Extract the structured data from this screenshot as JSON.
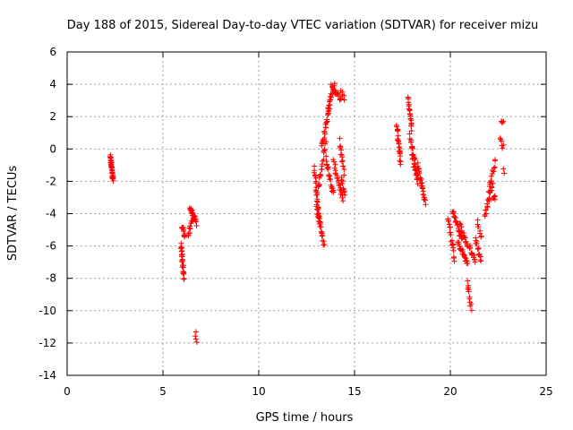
{
  "chart_data": {
    "type": "scatter",
    "title": "Day 188 of 2015, Sidereal Day-to-day VTEC variation (SDTVAR) for receiver mizu",
    "xlabel": "GPS time / hours",
    "ylabel": "SDTVAR / TECUs",
    "xlim": [
      0,
      25
    ],
    "ylim": [
      -14,
      6
    ],
    "xticks": [
      0,
      5,
      10,
      15,
      20,
      25
    ],
    "yticks": [
      -14,
      -12,
      -10,
      -8,
      -6,
      -4,
      -2,
      0,
      2,
      4,
      6
    ],
    "xtick_labels": [
      "0",
      "5",
      "10",
      "15",
      "20",
      "25"
    ],
    "ytick_labels": [
      "-14",
      "-12",
      "-10",
      "-8",
      "-6",
      "-4",
      "-2",
      "0",
      "2",
      "4",
      "6"
    ],
    "grid": true,
    "marker": "+",
    "marker_color": "#ff0000",
    "series": [
      {
        "name": "SDTVAR",
        "segments": [
          {
            "t0": 2.25,
            "t1": 2.4,
            "y0": -0.5,
            "y1": -1.9,
            "n": 40
          },
          {
            "t0": 5.95,
            "t1": 6.1,
            "y0": -6.0,
            "y1": -8.1,
            "n": 30
          },
          {
            "t0": 6.0,
            "t1": 6.15,
            "y0": -4.8,
            "y1": -5.3,
            "n": 12
          },
          {
            "t0": 6.3,
            "t1": 6.6,
            "y0": -5.4,
            "y1": -4.2,
            "n": 14
          },
          {
            "t0": 6.4,
            "t1": 6.75,
            "y0": -3.6,
            "y1": -4.6,
            "n": 22
          },
          {
            "t0": 6.7,
            "t1": 6.75,
            "y0": -11.4,
            "y1": -12.1,
            "n": 4
          },
          {
            "t0": 12.9,
            "t1": 13.2,
            "y0": -1.2,
            "y1": -4.8,
            "n": 28
          },
          {
            "t0": 13.0,
            "t1": 13.4,
            "y0": -3.5,
            "y1": -5.9,
            "n": 22
          },
          {
            "t0": 13.1,
            "t1": 13.5,
            "y0": -2.5,
            "y1": 0.4,
            "n": 20
          },
          {
            "t0": 13.3,
            "t1": 13.7,
            "y0": 0.2,
            "y1": 2.6,
            "n": 24
          },
          {
            "t0": 13.6,
            "t1": 13.95,
            "y0": 2.5,
            "y1": 4.0,
            "n": 18
          },
          {
            "t0": 13.5,
            "t1": 13.9,
            "y0": -0.6,
            "y1": -2.8,
            "n": 22
          },
          {
            "t0": 13.8,
            "t1": 14.3,
            "y0": 3.9,
            "y1": 3.0,
            "n": 18
          },
          {
            "t0": 13.9,
            "t1": 14.4,
            "y0": -0.8,
            "y1": -3.2,
            "n": 22
          },
          {
            "t0": 14.2,
            "t1": 14.45,
            "y0": 0.5,
            "y1": -1.5,
            "n": 14
          },
          {
            "t0": 14.3,
            "t1": 14.5,
            "y0": -1.8,
            "y1": -2.8,
            "n": 10
          },
          {
            "t0": 14.3,
            "t1": 14.45,
            "y0": 3.6,
            "y1": 3.1,
            "n": 6
          },
          {
            "t0": 17.2,
            "t1": 17.4,
            "y0": 1.5,
            "y1": -0.8,
            "n": 26
          },
          {
            "t0": 17.8,
            "t1": 18.0,
            "y0": 3.2,
            "y1": 1.2,
            "n": 20
          },
          {
            "t0": 17.9,
            "t1": 18.3,
            "y0": 0.8,
            "y1": -1.8,
            "n": 24
          },
          {
            "t0": 18.0,
            "t1": 18.3,
            "y0": -0.3,
            "y1": -2.0,
            "n": 14
          },
          {
            "t0": 18.3,
            "t1": 18.7,
            "y0": -1.0,
            "y1": -3.4,
            "n": 26
          },
          {
            "t0": 19.9,
            "t1": 20.2,
            "y0": -4.2,
            "y1": -6.8,
            "n": 20
          },
          {
            "t0": 20.1,
            "t1": 20.6,
            "y0": -3.8,
            "y1": -5.6,
            "n": 24
          },
          {
            "t0": 20.4,
            "t1": 20.9,
            "y0": -5.8,
            "y1": -7.1,
            "n": 22
          },
          {
            "t0": 20.5,
            "t1": 20.9,
            "y0": -4.6,
            "y1": -6.1,
            "n": 16
          },
          {
            "t0": 20.9,
            "t1": 21.1,
            "y0": -8.2,
            "y1": -9.9,
            "n": 12
          },
          {
            "t0": 21.0,
            "t1": 21.3,
            "y0": -6.0,
            "y1": -7.0,
            "n": 12
          },
          {
            "t0": 21.3,
            "t1": 21.6,
            "y0": -5.5,
            "y1": -6.9,
            "n": 14
          },
          {
            "t0": 21.4,
            "t1": 21.6,
            "y0": -4.5,
            "y1": -5.5,
            "n": 8
          },
          {
            "t0": 21.8,
            "t1": 22.2,
            "y0": -4.1,
            "y1": -2.2,
            "n": 20
          },
          {
            "t0": 22.0,
            "t1": 22.35,
            "y0": -2.6,
            "y1": -0.7,
            "n": 16
          },
          {
            "t0": 22.2,
            "t1": 22.35,
            "y0": -2.9,
            "y1": -3.1,
            "n": 5
          },
          {
            "t0": 22.6,
            "t1": 22.75,
            "y0": 0.6,
            "y1": 0.1,
            "n": 6
          },
          {
            "t0": 22.65,
            "t1": 22.75,
            "y0": 1.8,
            "y1": 1.6,
            "n": 4
          },
          {
            "t0": 22.75,
            "t1": 22.8,
            "y0": -1.2,
            "y1": -1.4,
            "n": 2
          }
        ]
      }
    ]
  }
}
